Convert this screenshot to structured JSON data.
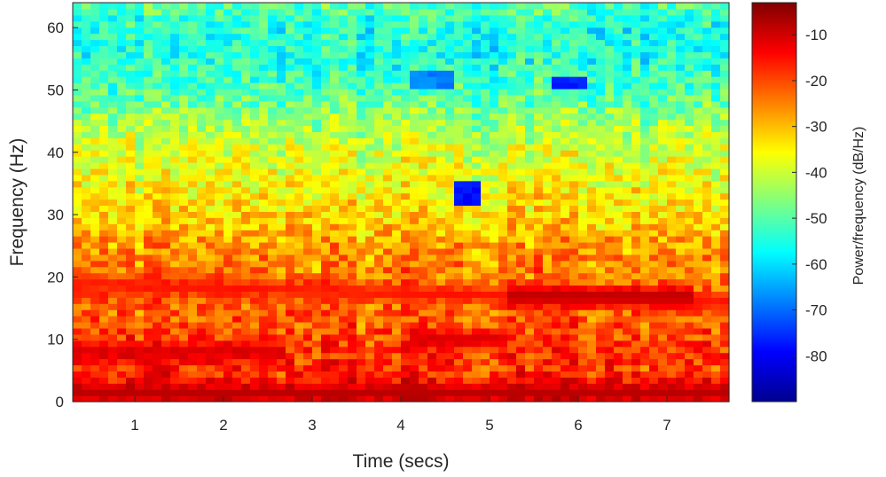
{
  "chart_data": {
    "type": "heatmap",
    "subtype": "spectrogram",
    "xlabel": "Time (secs)",
    "ylabel": "Frequency (Hz)",
    "x_ticks": [
      1,
      2,
      3,
      4,
      5,
      6,
      7
    ],
    "y_ticks": [
      0,
      10,
      20,
      30,
      40,
      50,
      60
    ],
    "xlim": [
      0.3,
      7.7
    ],
    "ylim": [
      0,
      64
    ],
    "colormap": "jet",
    "colorbar": {
      "label": "Power/frequency (dB/Hz)",
      "ticks": [
        -80,
        -70,
        -60,
        -50,
        -40,
        -30,
        -20,
        -10
      ],
      "range": [
        -90,
        -3
      ]
    },
    "grid": "off",
    "time_columns": 74,
    "frequency_bins": 65,
    "power_profile_by_frequency": {
      "frequency_hz": [
        0,
        2,
        5,
        10,
        15,
        20,
        25,
        30,
        35,
        40,
        45,
        50,
        55,
        60,
        64
      ],
      "power_db": [
        -14,
        -16,
        -18,
        -20,
        -23,
        -24,
        -27,
        -33,
        -36,
        -39,
        -44,
        -51,
        -55,
        -55,
        -50
      ]
    },
    "ridges": [
      {
        "t": [
          0.3,
          7.7
        ],
        "f": [
          19,
          16
        ],
        "power_db": -15
      },
      {
        "t": [
          5.2,
          7.3
        ],
        "f": [
          17,
          17
        ],
        "power_db": -8
      },
      {
        "t": [
          4.1,
          5.2
        ],
        "f": [
          10,
          10
        ],
        "power_db": -10
      },
      {
        "t": [
          0.3,
          7.7
        ],
        "f": [
          1.5,
          1.5
        ],
        "power_db": -8
      },
      {
        "t": [
          0.3,
          2.7
        ],
        "f": [
          8,
          8
        ],
        "power_db": -10
      }
    ],
    "minima": [
      {
        "t": [
          4.65,
          4.75
        ],
        "f": [
          32.5,
          35
        ],
        "power_db": -80
      },
      {
        "t": [
          4.2,
          4.5
        ],
        "f": [
          50.5,
          52.5
        ],
        "power_db": -70
      },
      {
        "t": [
          5.8,
          6.0
        ],
        "f": [
          51,
          52
        ],
        "power_db": -78
      }
    ]
  }
}
